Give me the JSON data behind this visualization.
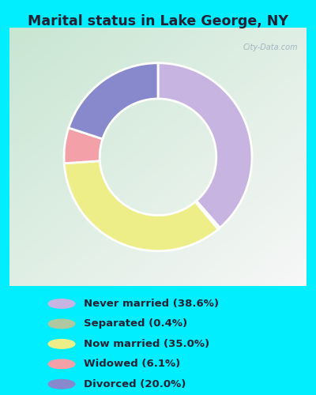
{
  "title": "Marital status in Lake George, NY",
  "slices": [
    {
      "label": "Never married (38.6%)",
      "value": 38.6,
      "color": "#C8B4E0"
    },
    {
      "label": "Separated (0.4%)",
      "value": 0.4,
      "color": "#B0C8A0"
    },
    {
      "label": "Now married (35.0%)",
      "value": 35.0,
      "color": "#EEEE88"
    },
    {
      "label": "Widowed (6.1%)",
      "value": 6.1,
      "color": "#F4A0A8"
    },
    {
      "label": "Divorced (20.0%)",
      "value": 20.0,
      "color": "#8888CC"
    }
  ],
  "bg_outer": "#00EEFF",
  "title_color": "#222233",
  "legend_text_color": "#222233",
  "watermark": "City-Data.com",
  "start_angle": 90,
  "donut_width": 0.38,
  "chart_bg_tl": [
    200,
    230,
    210
  ],
  "chart_bg_br": [
    235,
    245,
    230
  ]
}
